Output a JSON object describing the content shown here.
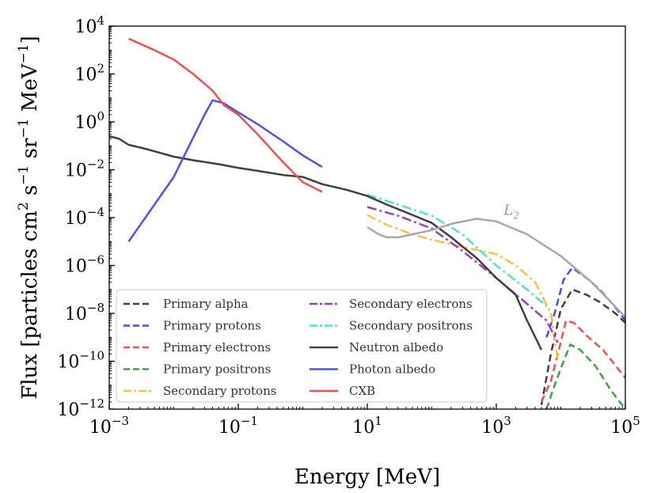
{
  "chart_data": {
    "type": "line",
    "xlabel": "Energy [MeV]",
    "ylabel": "Flux [particles cm² s⁻¹ sr⁻¹ MeV⁻¹]",
    "xscale": "log",
    "yscale": "log",
    "xlim": [
      0.001,
      100000
    ],
    "ylim": [
      1e-12,
      10000
    ],
    "x_ticks": [
      {
        "base": "10",
        "exp": "−3",
        "value": 0.001
      },
      {
        "base": "10",
        "exp": "−1",
        "value": 0.1
      },
      {
        "base": "10",
        "exp": "1",
        "value": 10
      },
      {
        "base": "10",
        "exp": "3",
        "value": 1000
      },
      {
        "base": "10",
        "exp": "5",
        "value": 100000
      }
    ],
    "y_ticks": [
      {
        "base": "10",
        "exp": "−12",
        "value": 1e-12
      },
      {
        "base": "10",
        "exp": "−10",
        "value": 1e-10
      },
      {
        "base": "10",
        "exp": "−8",
        "value": 1e-08
      },
      {
        "base": "10",
        "exp": "−6",
        "value": 1e-06
      },
      {
        "base": "10",
        "exp": "−4",
        "value": 0.0001
      },
      {
        "base": "10",
        "exp": "−2",
        "value": 0.01
      },
      {
        "base": "10",
        "exp": "0",
        "value": 1
      },
      {
        "base": "10",
        "exp": "2",
        "value": 100
      },
      {
        "base": "10",
        "exp": "4",
        "value": 10000
      }
    ],
    "annotations": [
      {
        "text": "L",
        "subscript": "2",
        "x": 1300,
        "y": 0.00013
      }
    ],
    "series": [
      {
        "name": "Primary alpha",
        "color": "#404040",
        "style": "dashed",
        "x": [
          5000,
          7000,
          10000,
          15000,
          25000,
          40000,
          70000,
          100000
        ],
        "y": [
          1.5e-12,
          2e-10,
          1.5e-08,
          1e-07,
          6e-08,
          3e-08,
          1e-08,
          4e-09
        ]
      },
      {
        "name": "Primary protons",
        "color": "#4a4af0",
        "style": "dashed",
        "x": [
          6000,
          8000,
          11000,
          15000,
          25000,
          40000,
          70000,
          100000
        ],
        "y": [
          1e-09,
          1e-08,
          2.5e-07,
          8e-07,
          3e-07,
          1e-07,
          1.8e-08,
          5e-09
        ]
      },
      {
        "name": "Primary electrons",
        "color": "#f05050",
        "style": "dashed",
        "x": [
          5000,
          7000,
          9000,
          12000,
          16000,
          25000,
          45000,
          100000
        ],
        "y": [
          2e-12,
          1.5e-11,
          2e-10,
          5e-09,
          4e-09,
          1.2e-09,
          3e-10,
          2e-11
        ]
      },
      {
        "name": "Primary positrons",
        "color": "#40a040",
        "style": "dashed",
        "x": [
          6000,
          8000,
          10000,
          14000,
          20000,
          35000,
          60000,
          100000
        ],
        "y": [
          1e-12,
          1e-11,
          5e-11,
          5e-10,
          3e-10,
          6e-11,
          6e-12,
          1e-12
        ]
      },
      {
        "name": "Secondary protons",
        "color": "#ffc03a",
        "style": "dashdot",
        "x": [
          10,
          20,
          50,
          100,
          300,
          1000,
          2000,
          4000,
          7000,
          9000
        ],
        "y": [
          0.00013,
          5e-05,
          2e-05,
          1.2e-05,
          6e-06,
          3e-06,
          1e-06,
          2e-07,
          1e-08,
          1e-10
        ]
      },
      {
        "name": "Secondary electrons",
        "color": "#a040b0",
        "style": "dashdot",
        "x": [
          10,
          30,
          100,
          300,
          1000,
          3000,
          6000,
          9000
        ],
        "y": [
          0.00028,
          0.00012,
          3.5e-05,
          4e-06,
          3e-07,
          2.5e-08,
          5e-09,
          6e-10
        ]
      },
      {
        "name": "Secondary positrons",
        "color": "#50e0d0",
        "style": "dashdot",
        "x": [
          10,
          30,
          100,
          300,
          1000,
          3000,
          6000
        ],
        "y": [
          0.0009,
          0.00035,
          0.00012,
          2e-05,
          1e-06,
          1e-07,
          2e-08
        ]
      },
      {
        "name": "Neutron albedo",
        "color": "#404040",
        "style": "solid",
        "x": [
          0.001,
          0.0014,
          0.002,
          0.004,
          0.01,
          0.02,
          0.05,
          0.1,
          0.2,
          0.5,
          1,
          2,
          5,
          10,
          20,
          50,
          100,
          200,
          500,
          1000,
          2000,
          3000,
          5000
        ],
        "y": [
          0.25,
          0.2,
          0.11,
          0.07,
          0.035,
          0.025,
          0.017,
          0.012,
          0.009,
          0.006,
          0.005,
          0.0025,
          0.0014,
          0.0008,
          0.00035,
          0.00013,
          6e-05,
          1.5e-05,
          2e-06,
          3e-07,
          6e-08,
          5e-09,
          3e-10
        ]
      },
      {
        "name": "Photon albedo",
        "color": "#5050f0",
        "style": "solid",
        "x": [
          0.002,
          0.01,
          0.03,
          0.04,
          0.06,
          0.1,
          0.2,
          0.5,
          1,
          2
        ],
        "y": [
          1e-05,
          0.005,
          2,
          8,
          6,
          2.5,
          0.8,
          0.15,
          0.04,
          0.013
        ]
      },
      {
        "name": "CXB",
        "color": "#f05050",
        "style": "solid",
        "x": [
          0.002,
          0.005,
          0.01,
          0.02,
          0.04,
          0.06,
          0.1,
          0.2,
          0.5,
          1,
          2
        ],
        "y": [
          3000,
          1000,
          400,
          100,
          20,
          5,
          2,
          0.3,
          0.02,
          0.003,
          0.0012
        ]
      },
      {
        "name": "L2",
        "color": "#a8a8a8",
        "style": "solid",
        "in_legend": false,
        "x": [
          10,
          15,
          20,
          30,
          50,
          100,
          200,
          500,
          1000,
          3000,
          10000,
          30000,
          100000
        ],
        "y": [
          4e-05,
          2e-05,
          1.5e-05,
          1.5e-05,
          2e-05,
          3e-05,
          5.5e-05,
          9e-05,
          7e-05,
          2e-05,
          2.5e-06,
          2e-07,
          7e-09
        ]
      }
    ]
  }
}
